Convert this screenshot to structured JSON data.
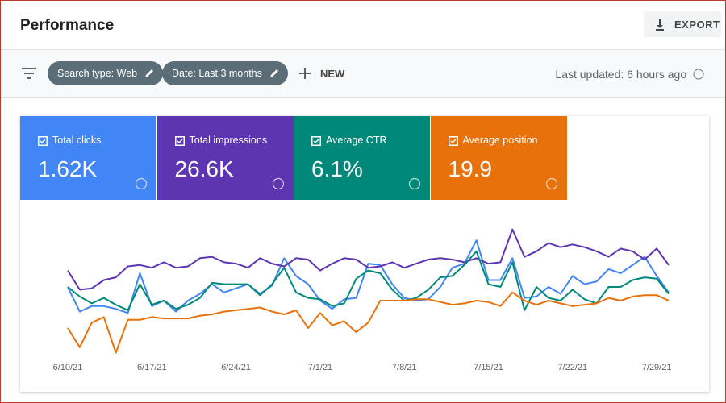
{
  "header": {
    "title": "Performance",
    "export": "EXPORT"
  },
  "toolbar": {
    "chips": [
      "Search type: Web",
      "Date: Last 3 months"
    ],
    "new": "NEW",
    "updated": "Last updated: 6 hours ago"
  },
  "chart_data": {
    "type": "line",
    "categories": [
      "6/10/21",
      null,
      null,
      null,
      null,
      null,
      null,
      "6/17/21",
      null,
      null,
      null,
      null,
      null,
      null,
      "6/24/21",
      null,
      null,
      null,
      null,
      null,
      null,
      "7/1/21",
      null,
      null,
      null,
      null,
      null,
      null,
      "7/8/21",
      null,
      null,
      null,
      null,
      null,
      null,
      "7/15/21",
      null,
      null,
      null,
      null,
      null,
      null,
      "7/22/21",
      null,
      null,
      null,
      null,
      null,
      null,
      "7/29/21",
      null
    ],
    "ylim": [
      0,
      100
    ],
    "series": [
      {
        "name": "Total clicks",
        "summary": "1.62K",
        "color": "#4285f4",
        "values": [
          50,
          32,
          36,
          36,
          34,
          31,
          60,
          36,
          40,
          32,
          40,
          45,
          52,
          46,
          49,
          52,
          45,
          51,
          71,
          58,
          52,
          40,
          34,
          41,
          42,
          67,
          66,
          52,
          42,
          40,
          41,
          50,
          64,
          67,
          84,
          55,
          55,
          71,
          42,
          43,
          50,
          45,
          58,
          52,
          54,
          63,
          60,
          66,
          72,
          58,
          46
        ]
      },
      {
        "name": "Total impressions",
        "summary": "26.6K",
        "color": "#5e35b1",
        "values": [
          62,
          48,
          49,
          55,
          57,
          65,
          66,
          64,
          68,
          64,
          65,
          71,
          72,
          68,
          67,
          64,
          71,
          67,
          65,
          71,
          70,
          62,
          67,
          71,
          70,
          64,
          65,
          68,
          64,
          67,
          70,
          71,
          70,
          68,
          71,
          67,
          68,
          92,
          72,
          76,
          82,
          79,
          81,
          79,
          76,
          72,
          78,
          76,
          70,
          78,
          66
        ]
      },
      {
        "name": "Average CTR",
        "summary": "6.1%",
        "color": "#00897b",
        "values": [
          50,
          43,
          38,
          42,
          37,
          33,
          52,
          37,
          40,
          34,
          37,
          42,
          53,
          52,
          52,
          52,
          44,
          52,
          64,
          46,
          42,
          41,
          36,
          38,
          56,
          62,
          60,
          48,
          40,
          42,
          48,
          57,
          58,
          66,
          76,
          52,
          50,
          68,
          33,
          50,
          42,
          40,
          48,
          41,
          38,
          50,
          50,
          55,
          57,
          56,
          45
        ]
      },
      {
        "name": "Average position",
        "summary": "19.9",
        "color": "#e8710a",
        "values": [
          20,
          6,
          24,
          28,
          2,
          26,
          26,
          28,
          27,
          27,
          27,
          29,
          30,
          32,
          33,
          34,
          35,
          32,
          30,
          33,
          20,
          31,
          22,
          25,
          17,
          24,
          40,
          40,
          40,
          41,
          41,
          39,
          37,
          38,
          40,
          39,
          36,
          46,
          40,
          37,
          40,
          38,
          36,
          37,
          38,
          42,
          40,
          43,
          44,
          44,
          40
        ]
      }
    ]
  }
}
